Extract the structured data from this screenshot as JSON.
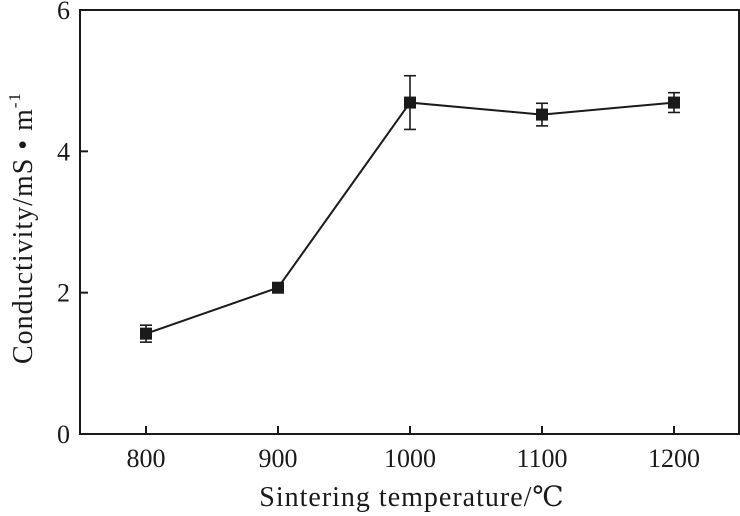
{
  "chart_data": {
    "type": "line",
    "title": "",
    "xlabel": "Sintering temperature/℃",
    "ylabel_main": "Conductivity/mS • m",
    "ylabel_sup": "-1",
    "x": [
      800,
      900,
      1000,
      1100,
      1200
    ],
    "xticks": [
      "800",
      "900",
      "1000",
      "1100",
      "1200"
    ],
    "xlim": [
      750,
      1250
    ],
    "ylim": [
      0,
      6
    ],
    "yticks": [
      "0",
      "2",
      "4",
      "6"
    ],
    "grid": false,
    "series": [
      {
        "values": [
          1.42,
          2.07,
          4.69,
          4.52,
          4.69
        ],
        "errors": [
          0.12,
          0.06,
          0.38,
          0.16,
          0.14
        ],
        "marker": "square",
        "color": "#1a1a1a"
      }
    ]
  }
}
